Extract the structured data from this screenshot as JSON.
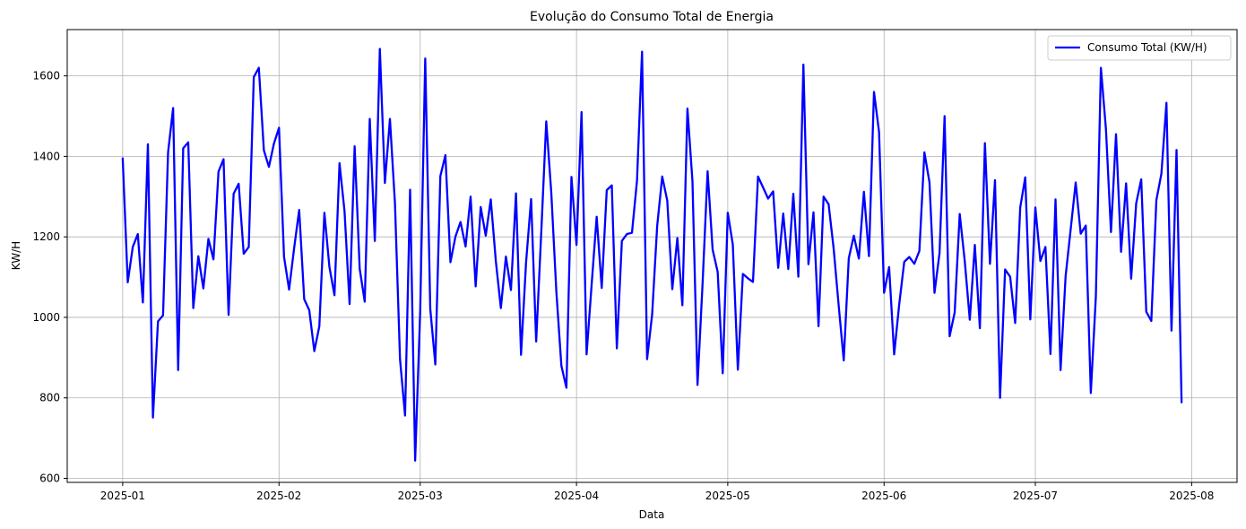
{
  "chart_data": {
    "type": "line",
    "title": "Evolução do Consumo Total de Energia",
    "xlabel": "Data",
    "ylabel": "KW/H",
    "x_start": "2025-01-01",
    "x_end": "2025-07-30",
    "xlim": [
      "2024-12-21",
      "2025-08-10"
    ],
    "ylim": [
      590,
      1715
    ],
    "x_ticks": [
      "2025-01",
      "2025-02",
      "2025-03",
      "2025-04",
      "2025-05",
      "2025-06",
      "2025-07",
      "2025-08"
    ],
    "y_ticks": [
      600,
      800,
      1000,
      1200,
      1400,
      1600
    ],
    "grid": true,
    "legend_position": "top-right",
    "color": "#0000ff",
    "series": [
      {
        "name": "Consumo Total (KW/H)",
        "values": [
          1395,
          1087,
          1175,
          1207,
          1037,
          1430,
          751,
          990,
          1005,
          1410,
          1520,
          869,
          1420,
          1435,
          1023,
          1152,
          1072,
          1195,
          1144,
          1362,
          1393,
          1006,
          1307,
          1332,
          1158,
          1175,
          1597,
          1620,
          1415,
          1374,
          1432,
          1471,
          1150,
          1069,
          1172,
          1267,
          1045,
          1018,
          916,
          978,
          1260,
          1125,
          1055,
          1383,
          1263,
          1033,
          1425,
          1121,
          1039,
          1493,
          1190,
          1667,
          1334,
          1493,
          1283,
          896,
          756,
          1317,
          644,
          1014,
          1643,
          1021,
          883,
          1351,
          1403,
          1137,
          1201,
          1237,
          1176,
          1300,
          1077,
          1274,
          1203,
          1293,
          1140,
          1023,
          1151,
          1068,
          1308,
          907,
          1137,
          1294,
          940,
          1208,
          1487,
          1310,
          1065,
          880,
          825,
          1349,
          1180,
          1510,
          908,
          1081,
          1250,
          1073,
          1316,
          1328,
          923,
          1190,
          1207,
          1210,
          1340,
          1660,
          896,
          1007,
          1227,
          1350,
          1290,
          1070,
          1197,
          1030,
          1519,
          1338,
          832,
          1083,
          1363,
          1168,
          1113,
          861,
          1260,
          1181,
          870,
          1108,
          1097,
          1088,
          1350,
          1323,
          1295,
          1313,
          1123,
          1258,
          1120,
          1307,
          1101,
          1628,
          1132,
          1261,
          978,
          1300,
          1281,
          1171,
          1029,
          893,
          1147,
          1203,
          1146,
          1312,
          1152,
          1560,
          1461,
          1061,
          1125,
          908,
          1032,
          1138,
          1150,
          1133,
          1165,
          1410,
          1336,
          1061,
          1160,
          1500,
          953,
          1012,
          1257,
          1140,
          994,
          1180,
          973,
          1433,
          1133,
          1341,
          800,
          1119,
          1101,
          986,
          1273,
          1348,
          995,
          1273,
          1140,
          1175,
          909,
          1293,
          869,
          1102,
          1218,
          1335,
          1208,
          1228,
          812,
          1051,
          1620,
          1468,
          1212,
          1455,
          1163,
          1333,
          1096,
          1283,
          1343,
          1014,
          991,
          1291,
          1357,
          1533,
          967,
          1416,
          789
        ]
      }
    ]
  }
}
